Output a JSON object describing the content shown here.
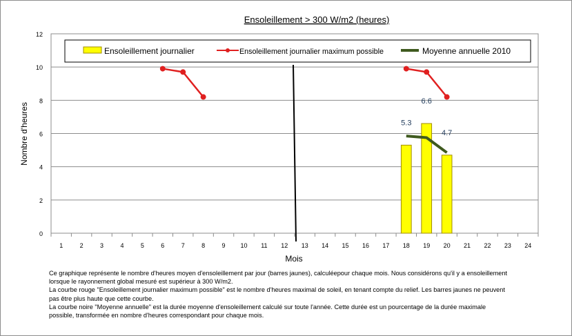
{
  "chart_data": {
    "type": "bar",
    "title": "Ensoleillement > 300 W/m2 (heures)",
    "xlabel": "Mois",
    "ylabel": "Nombre d'heures",
    "ylim": [
      0,
      12
    ],
    "yticks": [
      0,
      2,
      4,
      6,
      8,
      10,
      12
    ],
    "categories": [
      "1",
      "2",
      "3",
      "4",
      "5",
      "6",
      "7",
      "8",
      "9",
      "10",
      "11",
      "12",
      "13",
      "14",
      "15",
      "16",
      "17",
      "18",
      "19",
      "20",
      "21",
      "22",
      "23",
      "24"
    ],
    "grid": true,
    "legend_position": "top",
    "divider_after_category": "12",
    "series": [
      {
        "name": "Ensoleillement journalier",
        "type": "bar",
        "color": "#FFFF00",
        "border_color": "#A08C00",
        "values": [
          null,
          null,
          null,
          null,
          null,
          null,
          null,
          null,
          null,
          null,
          null,
          null,
          null,
          null,
          null,
          null,
          null,
          5.3,
          6.6,
          4.7,
          null,
          null,
          null,
          null
        ],
        "data_labels": [
          null,
          null,
          null,
          null,
          null,
          null,
          null,
          null,
          null,
          null,
          null,
          null,
          null,
          null,
          null,
          null,
          null,
          "5.3",
          "6.6",
          "4.7",
          null,
          null,
          null,
          null
        ]
      },
      {
        "name": "Ensoleillement journalier maximum possible",
        "type": "line",
        "color": "#E02020",
        "values": [
          null,
          null,
          null,
          null,
          null,
          9.9,
          9.7,
          8.2,
          null,
          null,
          null,
          null,
          null,
          null,
          null,
          null,
          null,
          9.9,
          9.7,
          8.2,
          null,
          null,
          null,
          null
        ]
      },
      {
        "name": "Moyenne annuelle 2010",
        "type": "line",
        "color": "#3F5A1F",
        "values": [
          null,
          null,
          null,
          null,
          null,
          null,
          null,
          null,
          null,
          null,
          null,
          null,
          null,
          null,
          null,
          null,
          null,
          5.85,
          5.75,
          4.85,
          null,
          null,
          null,
          null
        ]
      }
    ]
  },
  "notes": [
    "Ce graphique représente le nombre d'heures moyen d'ensoleillement par jour (barres jaunes), calculéepour chaque mois. Nous considérons qu'il y a ensoleillement",
    "lorsque le rayonnement global mesuré est supérieur à 300 W/m2.",
    "La courbe rouge \"Ensoleillement journalier maximum possible\" est le nombre d'heures maximal de soleil, en tenant compte du relief. Les barres jaunes ne peuvent",
    "pas être plus haute que cette courbe.",
    "La courbe noire \"Moyenne annuelle\" est la durée moyenne d'ensoleillement calculé sur toute l'année. Cette durée est un pourcentage de la durée maximale",
    "possible, transformée en nombre d'heures correspondant pour chaque mois."
  ]
}
